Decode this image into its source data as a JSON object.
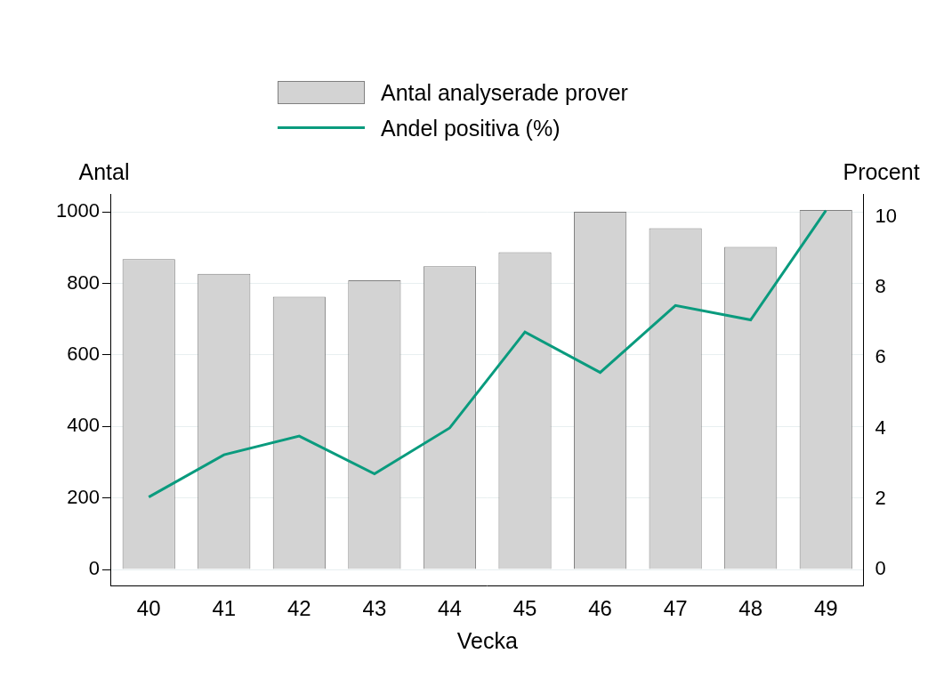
{
  "chart_data": {
    "type": "bar",
    "categories": [
      "40",
      "41",
      "42",
      "43",
      "44",
      "45",
      "46",
      "47",
      "48",
      "49"
    ],
    "series": [
      {
        "name": "Antal analyserade prover",
        "type": "bar",
        "color": "#d3d3d3",
        "values": [
          868,
          827,
          763,
          809,
          848,
          887,
          1000,
          954,
          902,
          1005
        ]
      },
      {
        "name": "Andel positiva (%)",
        "type": "line",
        "color": "#0a9b7e",
        "axis": "y2",
        "values": [
          2.06,
          3.26,
          3.79,
          2.72,
          4.02,
          6.74,
          5.59,
          7.49,
          7.08,
          10.18
        ]
      }
    ],
    "x_label": "Vecka",
    "y_label": "Antal",
    "y2_label": "Procent",
    "ylim": [
      -45,
      1050
    ],
    "yticks": [
      0,
      200,
      400,
      600,
      800,
      1000
    ],
    "y2lim": [
      -0.45,
      10.65
    ],
    "y2ticks": [
      0,
      2,
      4,
      6,
      8,
      10
    ],
    "grid": true,
    "legend": "top"
  }
}
